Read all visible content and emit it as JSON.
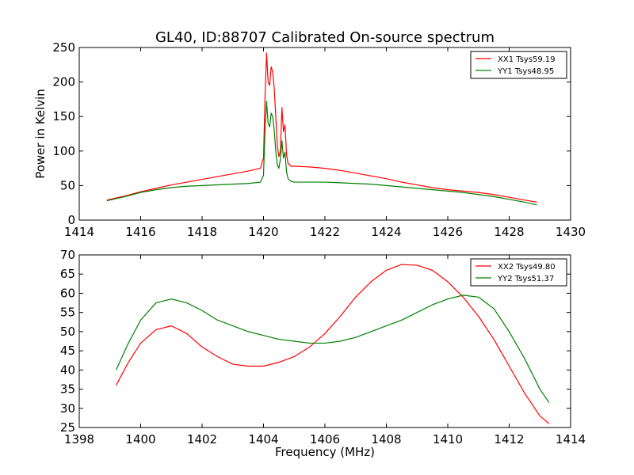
{
  "chart_data": [
    {
      "type": "line",
      "title": "GL40, ID:88707 Calibrated On-source spectrum",
      "xlabel": "",
      "ylabel": "Power in Kelvin",
      "xlim": [
        1414,
        1430
      ],
      "ylim": [
        0,
        250
      ],
      "xticks": [
        1414,
        1416,
        1418,
        1420,
        1422,
        1424,
        1426,
        1428,
        1430
      ],
      "yticks": [
        0,
        50,
        100,
        150,
        200,
        250
      ],
      "legend_position": "top-right",
      "series": [
        {
          "name": "XX1 Tsys59.19",
          "color": "#ff0000",
          "x": [
            1414.9,
            1415.5,
            1416.0,
            1416.5,
            1417.0,
            1417.5,
            1418.0,
            1418.5,
            1419.0,
            1419.5,
            1419.9,
            1420.0,
            1420.05,
            1420.1,
            1420.15,
            1420.2,
            1420.25,
            1420.3,
            1420.35,
            1420.4,
            1420.45,
            1420.5,
            1420.55,
            1420.6,
            1420.65,
            1420.7,
            1420.75,
            1420.8,
            1420.9,
            1421.0,
            1421.5,
            1422.0,
            1422.5,
            1423.0,
            1423.5,
            1424.0,
            1424.5,
            1425.0,
            1425.5,
            1426.0,
            1426.5,
            1427.0,
            1427.5,
            1428.0,
            1428.5,
            1428.9
          ],
          "y": [
            29,
            35,
            41,
            46,
            51,
            55,
            59,
            63,
            67,
            71,
            75,
            90,
            180,
            242,
            200,
            195,
            222,
            215,
            190,
            150,
            108,
            92,
            100,
            163,
            128,
            138,
            95,
            82,
            78,
            78,
            77,
            75,
            72,
            68,
            64,
            60,
            55,
            51,
            47,
            44,
            42,
            40,
            37,
            33,
            29,
            26
          ]
        },
        {
          "name": "YY1 Tsys48.95",
          "color": "#008000",
          "x": [
            1414.9,
            1415.5,
            1416.0,
            1416.5,
            1417.0,
            1417.5,
            1418.0,
            1418.5,
            1419.0,
            1419.5,
            1419.9,
            1420.0,
            1420.05,
            1420.1,
            1420.15,
            1420.2,
            1420.25,
            1420.3,
            1420.35,
            1420.4,
            1420.45,
            1420.5,
            1420.55,
            1420.6,
            1420.65,
            1420.7,
            1420.75,
            1420.8,
            1420.9,
            1421.0,
            1421.5,
            1422.0,
            1422.5,
            1423.0,
            1423.5,
            1424.0,
            1424.5,
            1425.0,
            1425.5,
            1426.0,
            1426.5,
            1427.0,
            1427.5,
            1428.0,
            1428.5,
            1428.9
          ],
          "y": [
            28,
            34,
            40,
            44,
            47,
            49,
            50,
            51,
            52,
            53,
            55,
            65,
            130,
            172,
            140,
            135,
            155,
            150,
            130,
            100,
            80,
            75,
            88,
            115,
            90,
            98,
            70,
            60,
            56,
            55,
            55,
            55,
            54,
            53,
            52,
            50,
            48,
            46,
            44,
            42,
            40,
            37,
            34,
            30,
            26,
            22
          ]
        }
      ]
    },
    {
      "type": "line",
      "title": "",
      "xlabel": "Frequency (MHz)",
      "ylabel": "",
      "xlim": [
        1398,
        1414
      ],
      "ylim": [
        25,
        70
      ],
      "xticks": [
        1398,
        1400,
        1402,
        1404,
        1406,
        1408,
        1410,
        1412,
        1414
      ],
      "yticks": [
        25,
        30,
        35,
        40,
        45,
        50,
        55,
        60,
        65,
        70
      ],
      "legend_position": "top-right",
      "series": [
        {
          "name": "XX2 Tsys49.80",
          "color": "#ff0000",
          "x": [
            1399.2,
            1399.6,
            1400.0,
            1400.5,
            1401.0,
            1401.5,
            1402.0,
            1402.5,
            1403.0,
            1403.5,
            1404.0,
            1404.5,
            1405.0,
            1405.5,
            1406.0,
            1406.5,
            1407.0,
            1407.5,
            1408.0,
            1408.5,
            1409.0,
            1409.5,
            1410.0,
            1410.5,
            1411.0,
            1411.5,
            1412.0,
            1412.5,
            1413.0,
            1413.3
          ],
          "y": [
            36,
            42,
            47,
            50.5,
            51.5,
            49.5,
            46,
            43.5,
            41.5,
            41,
            41,
            42,
            43.5,
            46,
            49.5,
            54,
            59,
            63,
            66,
            67.5,
            67.3,
            66,
            63,
            59,
            54,
            48,
            41,
            34,
            28,
            26
          ]
        },
        {
          "name": "YY2 Tsys51.37",
          "color": "#008000",
          "x": [
            1399.2,
            1399.6,
            1400.0,
            1400.5,
            1401.0,
            1401.5,
            1402.0,
            1402.5,
            1403.0,
            1403.5,
            1404.0,
            1404.5,
            1405.0,
            1405.5,
            1406.0,
            1406.5,
            1407.0,
            1407.5,
            1408.0,
            1408.5,
            1409.0,
            1409.5,
            1410.0,
            1410.5,
            1411.0,
            1411.5,
            1412.0,
            1412.5,
            1413.0,
            1413.3
          ],
          "y": [
            40,
            47,
            53,
            57.5,
            58.5,
            57.5,
            55.5,
            53,
            51.5,
            50,
            49,
            48,
            47.5,
            47,
            47,
            47.5,
            48.5,
            50,
            51.5,
            53,
            55,
            57,
            58.5,
            59.5,
            59,
            56,
            50,
            43,
            35,
            31.5
          ]
        }
      ]
    }
  ]
}
